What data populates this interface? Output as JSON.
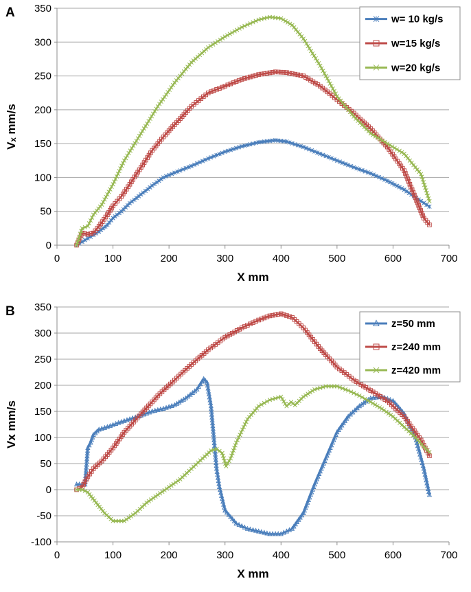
{
  "chart_data": [
    {
      "type": "line",
      "panel_label": "A",
      "xlabel": "X mm",
      "ylabel": "Vₓ mm/s",
      "xlim": [
        0,
        700
      ],
      "ylim": [
        0,
        350
      ],
      "xticks": [
        0,
        100,
        200,
        300,
        400,
        500,
        600,
        700
      ],
      "yticks": [
        0,
        50,
        100,
        150,
        200,
        250,
        300,
        350
      ],
      "grid": "horizontal",
      "legend_position": "top-right",
      "series": [
        {
          "name": "w= 10 kg/s",
          "color": "#4a7ebb",
          "marker": "asterisk",
          "x": [
            35,
            45,
            55,
            65,
            75,
            90,
            100,
            115,
            130,
            150,
            170,
            190,
            210,
            240,
            270,
            300,
            330,
            360,
            390,
            410,
            440,
            470,
            500,
            530,
            560,
            590,
            620,
            650,
            665
          ],
          "y": [
            0,
            5,
            10,
            15,
            20,
            30,
            40,
            50,
            62,
            75,
            88,
            100,
            107,
            117,
            128,
            138,
            146,
            152,
            155,
            153,
            145,
            135,
            125,
            115,
            106,
            95,
            82,
            65,
            57
          ]
        },
        {
          "name": "w=15 kg/s",
          "color": "#be4b48",
          "marker": "square",
          "x": [
            35,
            45,
            55,
            65,
            75,
            90,
            100,
            115,
            130,
            150,
            170,
            190,
            210,
            240,
            270,
            300,
            330,
            360,
            390,
            410,
            440,
            470,
            500,
            530,
            560,
            590,
            620,
            640,
            655,
            665
          ],
          "y": [
            0,
            18,
            16,
            18,
            28,
            45,
            58,
            72,
            90,
            115,
            140,
            160,
            178,
            205,
            225,
            235,
            245,
            252,
            256,
            255,
            250,
            235,
            215,
            195,
            172,
            145,
            110,
            70,
            40,
            30
          ]
        },
        {
          "name": "w=20 kg/s",
          "color": "#98b954",
          "marker": "x",
          "x": [
            35,
            45,
            55,
            65,
            80,
            100,
            120,
            150,
            180,
            210,
            240,
            270,
            300,
            330,
            360,
            380,
            400,
            420,
            440,
            470,
            500,
            530,
            560,
            590,
            620,
            650,
            665
          ],
          "y": [
            0,
            25,
            28,
            45,
            60,
            90,
            125,
            165,
            205,
            240,
            270,
            292,
            308,
            322,
            333,
            337,
            335,
            325,
            305,
            265,
            220,
            190,
            165,
            150,
            135,
            105,
            65
          ]
        }
      ]
    },
    {
      "type": "line",
      "panel_label": "B",
      "xlabel": "X mm",
      "ylabel": "Vx mm/s",
      "xlim": [
        0,
        700
      ],
      "ylim": [
        -100,
        350
      ],
      "xticks": [
        0,
        100,
        200,
        300,
        400,
        500,
        600,
        700
      ],
      "yticks": [
        -100,
        -50,
        0,
        50,
        100,
        150,
        200,
        250,
        300,
        350
      ],
      "grid": "horizontal",
      "legend_position": "top-right",
      "series": [
        {
          "name": "z=50 mm",
          "color": "#4a7ebb",
          "marker": "triangle",
          "x": [
            35,
            45,
            50,
            55,
            60,
            65,
            75,
            90,
            110,
            130,
            150,
            170,
            190,
            210,
            230,
            250,
            262,
            268,
            275,
            280,
            285,
            290,
            300,
            320,
            340,
            360,
            380,
            400,
            420,
            440,
            460,
            480,
            500,
            520,
            540,
            560,
            580,
            600,
            620,
            640,
            655,
            665
          ],
          "y": [
            10,
            10,
            10,
            80,
            90,
            105,
            115,
            120,
            128,
            135,
            142,
            150,
            155,
            162,
            175,
            192,
            212,
            205,
            160,
            100,
            40,
            5,
            -40,
            -65,
            -75,
            -80,
            -85,
            -85,
            -75,
            -45,
            10,
            60,
            110,
            140,
            160,
            175,
            178,
            170,
            145,
            100,
            40,
            -10
          ]
        },
        {
          "name": "z=240 mm",
          "color": "#be4b48",
          "marker": "square",
          "x": [
            35,
            45,
            55,
            65,
            80,
            100,
            120,
            150,
            180,
            210,
            240,
            270,
            300,
            330,
            360,
            380,
            400,
            420,
            440,
            470,
            500,
            530,
            560,
            590,
            620,
            650,
            665
          ],
          "y": [
            0,
            5,
            25,
            40,
            55,
            80,
            110,
            145,
            180,
            210,
            240,
            268,
            292,
            310,
            325,
            333,
            337,
            330,
            310,
            270,
            235,
            210,
            190,
            170,
            140,
            95,
            65
          ]
        },
        {
          "name": "z=420 mm",
          "color": "#98b954",
          "marker": "x",
          "x": [
            35,
            45,
            55,
            70,
            85,
            100,
            120,
            140,
            160,
            180,
            200,
            220,
            240,
            260,
            275,
            285,
            295,
            302,
            310,
            320,
            340,
            360,
            380,
            400,
            410,
            418,
            425,
            440,
            460,
            480,
            500,
            520,
            540,
            560,
            580,
            600,
            620,
            640,
            655,
            665
          ],
          "y": [
            0,
            0,
            -5,
            -25,
            -45,
            -60,
            -60,
            -45,
            -25,
            -10,
            5,
            20,
            40,
            60,
            75,
            78,
            70,
            45,
            60,
            90,
            135,
            160,
            172,
            178,
            160,
            168,
            162,
            178,
            192,
            198,
            198,
            190,
            180,
            168,
            155,
            140,
            120,
            100,
            82,
            72
          ]
        }
      ]
    }
  ]
}
